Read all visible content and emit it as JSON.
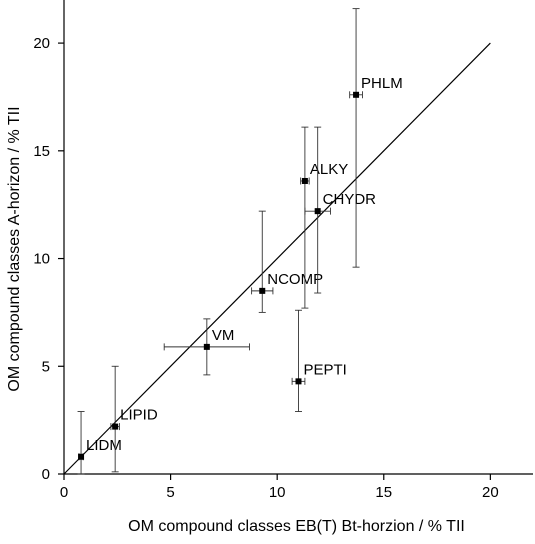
{
  "chart_data": {
    "type": "scatter",
    "title": "",
    "xlabel": "OM compound classes EB(T) Bt-horzion / % TII",
    "ylabel": "OM compound classes A-horizon / % TII",
    "xlim": [
      0,
      22
    ],
    "ylim": [
      0,
      22
    ],
    "x_ticks": [
      0,
      5,
      10,
      15,
      20
    ],
    "y_ticks": [
      0,
      5,
      10,
      15,
      20
    ],
    "grid": false,
    "legend": "none",
    "reference_line": {
      "from": [
        0,
        0
      ],
      "to": [
        20,
        20
      ]
    },
    "points": [
      {
        "label": "LIDM",
        "x": 0.8,
        "y": 0.8,
        "xerr": 0.1,
        "yerr": [
          0.8,
          2.1
        ]
      },
      {
        "label": "LIPID",
        "x": 2.4,
        "y": 2.2,
        "xerr": 0.2,
        "yerr": [
          2.1,
          2.8
        ]
      },
      {
        "label": "VM",
        "x": 6.7,
        "y": 5.9,
        "xerr": 2.0,
        "yerr": [
          1.3,
          1.3
        ]
      },
      {
        "label": "NCOMP",
        "x": 9.3,
        "y": 8.5,
        "xerr": 0.5,
        "yerr": [
          1.0,
          3.7
        ]
      },
      {
        "label": "PEPTI",
        "x": 11.0,
        "y": 4.3,
        "xerr": 0.3,
        "yerr": [
          1.4,
          3.3
        ]
      },
      {
        "label": "ALKY",
        "x": 11.3,
        "y": 13.6,
        "xerr": 0.2,
        "yerr": [
          5.9,
          2.5
        ]
      },
      {
        "label": "CHYDR",
        "x": 11.9,
        "y": 12.2,
        "xerr": 0.6,
        "yerr": [
          3.8,
          3.9
        ]
      },
      {
        "label": "PHLM",
        "x": 13.7,
        "y": 17.6,
        "xerr": 0.3,
        "yerr": [
          8.0,
          4.0
        ]
      }
    ]
  }
}
